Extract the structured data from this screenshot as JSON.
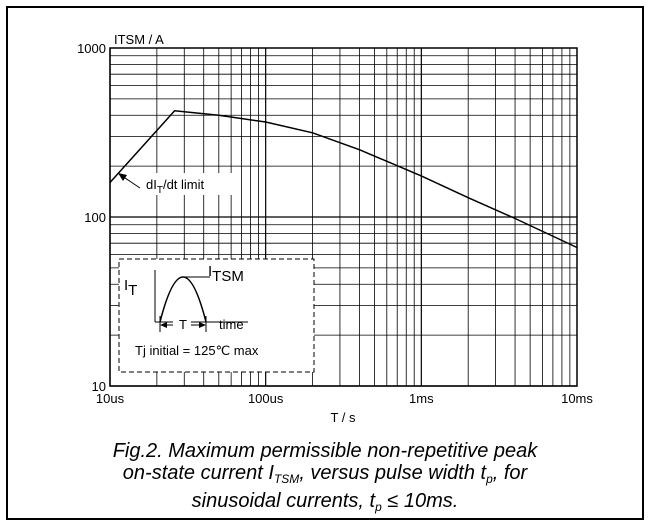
{
  "chart_data": {
    "type": "line",
    "y_axis_title": "ITSM / A",
    "x_axis_title": "T / s",
    "x_scale": "log",
    "y_scale": "log",
    "xlim": [
      1e-05,
      0.01
    ],
    "ylim": [
      10,
      1000
    ],
    "x_ticks": [
      {
        "value": 1e-05,
        "label": "10us"
      },
      {
        "value": 0.0001,
        "label": "100us"
      },
      {
        "value": 0.001,
        "label": "1ms"
      },
      {
        "value": 0.01,
        "label": "10ms"
      }
    ],
    "y_ticks": [
      {
        "value": 10,
        "label": "10"
      },
      {
        "value": 100,
        "label": "100"
      },
      {
        "value": 1000,
        "label": "1000"
      }
    ],
    "grid": true,
    "series": [
      {
        "points": [
          [
            1e-05,
            160
          ],
          [
            2.6e-05,
            425
          ],
          [
            5e-05,
            400
          ],
          [
            0.0001,
            365
          ],
          [
            0.0002,
            315
          ],
          [
            0.0004,
            250
          ],
          [
            0.001,
            175
          ],
          [
            0.002,
            130
          ],
          [
            0.004,
            98
          ],
          [
            0.01,
            66
          ]
        ]
      }
    ],
    "annotation": {
      "text": "dI",
      "sub": "T",
      "suffix": "/dt limit"
    },
    "inset": {
      "it_label": "I",
      "it_sub": "T",
      "itsm_label": "I",
      "itsm_sub": "TSM",
      "t_label": "T",
      "time_label": "time",
      "condition": "Tj initial = 125℃ max"
    }
  },
  "caption": {
    "line1": "Fig.2.   Maximum permissible non-repetitive peak",
    "line2_a": "on-state current I",
    "line2_sub": "TSM",
    "line2_b": ", versus pulse width t",
    "line2_sub2": "p",
    "line2_c": ", for",
    "line3_a": "sinusoidal currents, t",
    "line3_sub": "p",
    "line3_b": " ≤ 10ms."
  }
}
